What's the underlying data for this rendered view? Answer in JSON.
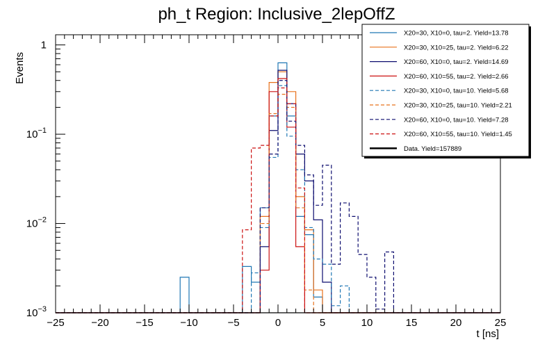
{
  "chart_data": {
    "type": "line",
    "title": "ph_t Region: Inclusive_2lepOffZ",
    "xlabel": "t [ns]",
    "ylabel": "Events",
    "xlim": [
      -25,
      25
    ],
    "ylim": [
      0.001,
      1.3
    ],
    "y_scale": "log",
    "bin_width": 1,
    "x_ticks": [
      -25,
      -20,
      -15,
      -10,
      -5,
      0,
      5,
      10,
      15,
      20,
      25
    ],
    "x_tick_labels": [
      "−25",
      "−20",
      "−15",
      "−10",
      "−5",
      "0",
      "5",
      "10",
      "15",
      "20",
      "25"
    ],
    "y_ticks": [
      {
        "value": 0.001,
        "base": "10",
        "exp": "−3"
      },
      {
        "value": 0.01,
        "base": "10",
        "exp": "−2"
      },
      {
        "value": 0.1,
        "base": "10",
        "exp": "−1"
      },
      {
        "value": 1,
        "base": "1",
        "exp": ""
      }
    ],
    "legend_position": "top-right",
    "series": [
      {
        "name": "X20=30, X10=0, tau=2. Yield=13.78",
        "color": "#1f77b4",
        "dash": false,
        "bins": [
          {
            "x": -11,
            "y": 0.0025
          },
          {
            "x": -4,
            "y": 0.0033
          },
          {
            "x": -3,
            "y": 0.0022
          },
          {
            "x": -2,
            "y": 0.015
          },
          {
            "x": -1,
            "y": 0.16
          },
          {
            "x": 0,
            "y": 0.63
          },
          {
            "x": 1,
            "y": 0.16
          },
          {
            "x": 2,
            "y": 0.012
          },
          {
            "x": 3,
            "y": 0.0075
          },
          {
            "x": 4,
            "y": 0.0015
          }
        ]
      },
      {
        "name": "X20=30, X10=25, tau=2. Yield=6.22",
        "color": "#e8701a",
        "dash": false,
        "bins": [
          {
            "x": -2,
            "y": 0.012
          },
          {
            "x": -1,
            "y": 0.38
          },
          {
            "x": 0,
            "y": 0.5
          },
          {
            "x": 1,
            "y": 0.3
          },
          {
            "x": 2,
            "y": 0.02
          },
          {
            "x": 3,
            "y": 0.0085
          },
          {
            "x": 4,
            "y": 0.0018
          }
        ]
      },
      {
        "name": "X20=60, X10=0, tau=2. Yield=14.69",
        "color": "#0c0c6e",
        "dash": false,
        "bins": [
          {
            "x": -2,
            "y": 0.0055
          },
          {
            "x": -1,
            "y": 0.11
          },
          {
            "x": 0,
            "y": 0.52
          },
          {
            "x": 1,
            "y": 0.22
          },
          {
            "x": 2,
            "y": 0.06
          },
          {
            "x": 3,
            "y": 0.03
          },
          {
            "x": 4,
            "y": 0.011
          },
          {
            "x": 5,
            "y": 0.0022
          }
        ]
      },
      {
        "name": "X20=60, X10=55, tau=2. Yield=2.66",
        "color": "#cc1111",
        "dash": false,
        "bins": [
          {
            "x": -2,
            "y": 0.003
          },
          {
            "x": -1,
            "y": 0.3
          },
          {
            "x": 0,
            "y": 0.42
          },
          {
            "x": 1,
            "y": 0.12
          },
          {
            "x": 2,
            "y": 0.0055
          }
        ]
      },
      {
        "name": "X20=30, X10=0, tau=10. Yield=5.68",
        "color": "#1f77b4",
        "dash": true,
        "bins": [
          {
            "x": -3,
            "y": 0.0028
          },
          {
            "x": -2,
            "y": 0.009
          },
          {
            "x": -1,
            "y": 0.055
          },
          {
            "x": 0,
            "y": 0.35
          },
          {
            "x": 1,
            "y": 0.095
          },
          {
            "x": 2,
            "y": 0.04
          },
          {
            "x": 3,
            "y": 0.009
          },
          {
            "x": 4,
            "y": 0.004
          },
          {
            "x": 5,
            "y": 0.0035
          },
          {
            "x": 6,
            "y": 0.0012
          },
          {
            "x": 7,
            "y": 0.002
          }
        ]
      },
      {
        "name": "X20=30, X10=25, tau=10. Yield=2.21",
        "color": "#e8701a",
        "dash": true,
        "bins": [
          {
            "x": -2,
            "y": 0.01
          },
          {
            "x": -1,
            "y": 0.17
          },
          {
            "x": 0,
            "y": 0.28
          },
          {
            "x": 1,
            "y": 0.2
          },
          {
            "x": 2,
            "y": 0.015
          },
          {
            "x": 3,
            "y": 0.0018
          }
        ]
      },
      {
        "name": "X20=60, X10=0, tau=10. Yield=7.28",
        "color": "#0c0c6e",
        "dash": true,
        "bins": [
          {
            "x": -2,
            "y": 0.015
          },
          {
            "x": -1,
            "y": 0.06
          },
          {
            "x": 0,
            "y": 0.4
          },
          {
            "x": 1,
            "y": 0.14
          },
          {
            "x": 2,
            "y": 0.075
          },
          {
            "x": 3,
            "y": 0.035
          },
          {
            "x": 4,
            "y": 0.016
          },
          {
            "x": 5,
            "y": 0.045
          },
          {
            "x": 6,
            "y": 0.0035
          },
          {
            "x": 7,
            "y": 0.017
          },
          {
            "x": 8,
            "y": 0.012
          },
          {
            "x": 9,
            "y": 0.0045
          },
          {
            "x": 10,
            "y": 0.0025
          },
          {
            "x": 11,
            "y": 0.0011
          },
          {
            "x": 12,
            "y": 0.0048
          }
        ]
      },
      {
        "name": "X20=60, X10=55, tau=10. Yield=1.45",
        "color": "#cc1111",
        "dash": true,
        "bins": [
          {
            "x": -4,
            "y": 0.0085
          },
          {
            "x": -3,
            "y": 0.07
          },
          {
            "x": -2,
            "y": 0.075
          },
          {
            "x": -1,
            "y": 0.16
          },
          {
            "x": 0,
            "y": 0.33
          },
          {
            "x": 1,
            "y": 0.22
          },
          {
            "x": 2,
            "y": 0.025
          }
        ]
      },
      {
        "name": "Data. Yield=157889",
        "color": "#000000",
        "dash": false,
        "bins": []
      }
    ]
  }
}
